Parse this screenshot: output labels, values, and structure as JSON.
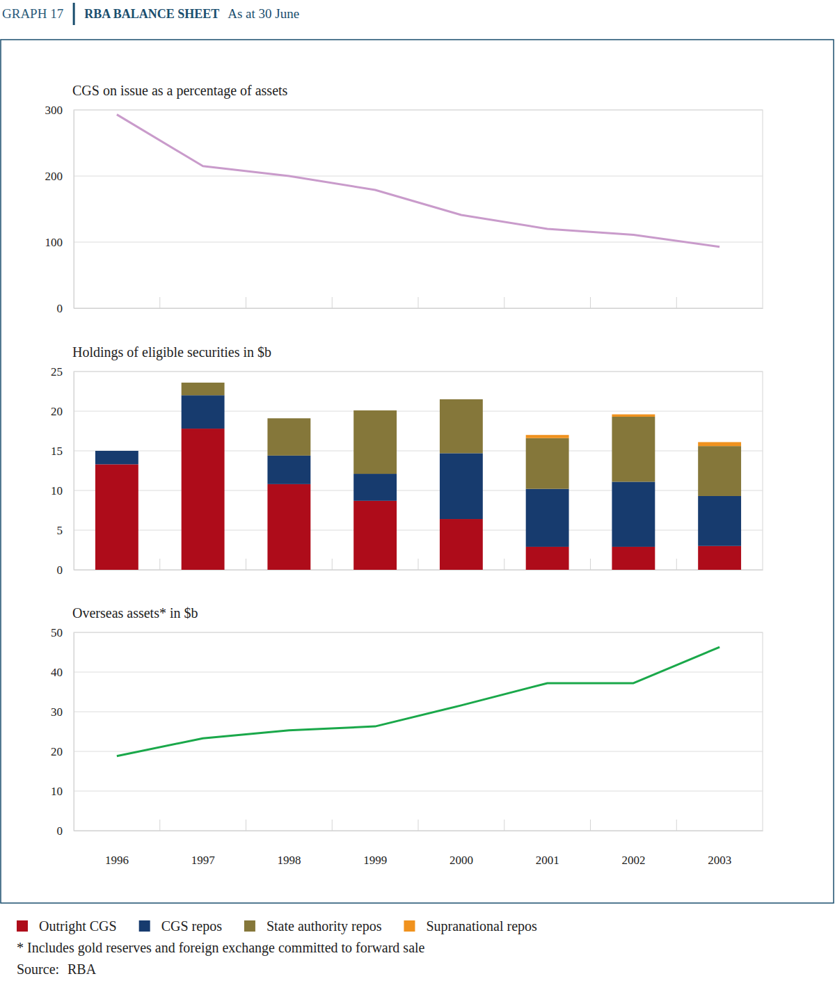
{
  "header": {
    "label": "GRAPH 17",
    "title": "RBA BALANCE SHEET",
    "subtitle": "As at 30 June"
  },
  "chart_data": [
    {
      "type": "line",
      "title": "CGS on issue as a percentage of assets",
      "categories": [
        "1996",
        "1997",
        "1998",
        "1999",
        "2000",
        "2001",
        "2002",
        "2003"
      ],
      "values": [
        293,
        215,
        200,
        179,
        141,
        120,
        111,
        93
      ],
      "color": "#c99bcb",
      "ylim": [
        0,
        300
      ],
      "yticks": [
        0,
        100,
        200,
        300
      ],
      "grid": true,
      "tick_labels": "y"
    },
    {
      "type": "bar",
      "title": "Holdings of eligible securities in $b",
      "categories": [
        "1996",
        "1997",
        "1998",
        "1999",
        "2000",
        "2001",
        "2002",
        "2003"
      ],
      "series": [
        {
          "name": "Outright CGS",
          "color": "#ae0c1a",
          "values": [
            13.3,
            17.8,
            10.8,
            8.7,
            6.4,
            2.9,
            2.9,
            3.0
          ]
        },
        {
          "name": "CGS repos",
          "color": "#173b6e",
          "values": [
            1.7,
            4.2,
            3.6,
            3.4,
            8.3,
            7.3,
            8.2,
            6.3
          ]
        },
        {
          "name": "State authority repos",
          "color": "#85773a",
          "values": [
            0,
            1.6,
            4.7,
            8.0,
            6.8,
            6.4,
            8.2,
            6.3
          ]
        },
        {
          "name": "Supranational repos",
          "color": "#f0921e",
          "values": [
            0,
            0,
            0,
            0,
            0,
            0.4,
            0.3,
            0.5
          ]
        }
      ],
      "stacked": true,
      "legend": "bottom",
      "ylim": [
        0,
        25
      ],
      "yticks": [
        0,
        5,
        10,
        15,
        20,
        25
      ],
      "grid": true,
      "tick_labels": "y"
    },
    {
      "type": "line",
      "title": "Overseas assets* in $b",
      "categories": [
        "1996",
        "1997",
        "1998",
        "1999",
        "2000",
        "2001",
        "2002",
        "2003"
      ],
      "values": [
        18.8,
        23.3,
        25.3,
        26.3,
        31.6,
        37.2,
        37.2,
        46.3
      ],
      "color": "#1aa84a",
      "ylim": [
        0,
        50
      ],
      "yticks": [
        0,
        10,
        20,
        30,
        40,
        50
      ],
      "grid": true
    }
  ],
  "footnote": "* Includes gold reserves and foreign exchange committed to forward sale",
  "source": {
    "label": "Source:",
    "text": "RBA"
  }
}
